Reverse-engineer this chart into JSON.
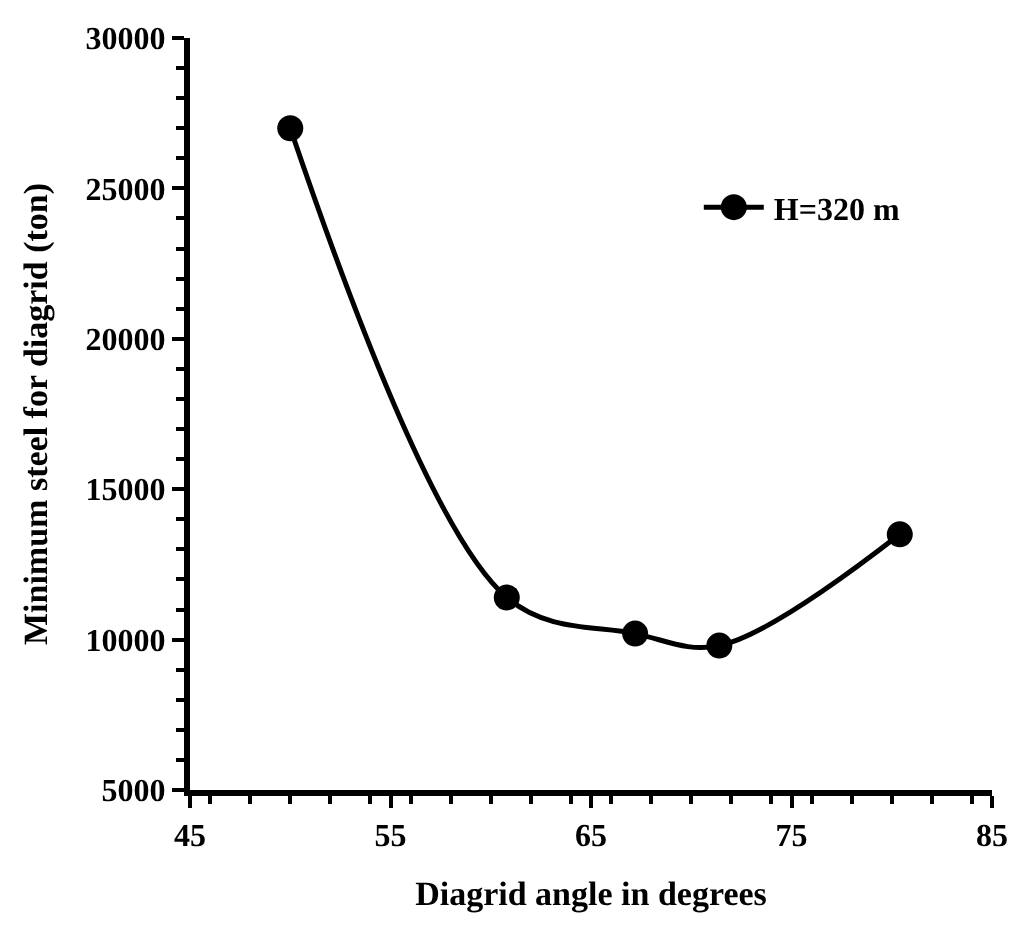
{
  "chart_data": {
    "type": "line",
    "xlabel": "Diagrid angle in degrees",
    "ylabel": "Minimum steel for diagrid (ton)",
    "x": [
      50,
      60.8,
      67.2,
      71.4,
      80.4
    ],
    "series": [
      {
        "name": "H=320 m",
        "color": "#000000",
        "values": [
          27000,
          11400,
          10200,
          9800,
          13500
        ]
      }
    ],
    "xlim": [
      45,
      85
    ],
    "xticks": [
      45,
      55,
      65,
      75,
      85
    ],
    "ylim": [
      5000,
      30000
    ],
    "yticks": [
      5000,
      10000,
      15000,
      20000,
      25000,
      30000
    ],
    "legend": "top right",
    "marker": "circle",
    "line_style": "solid"
  }
}
